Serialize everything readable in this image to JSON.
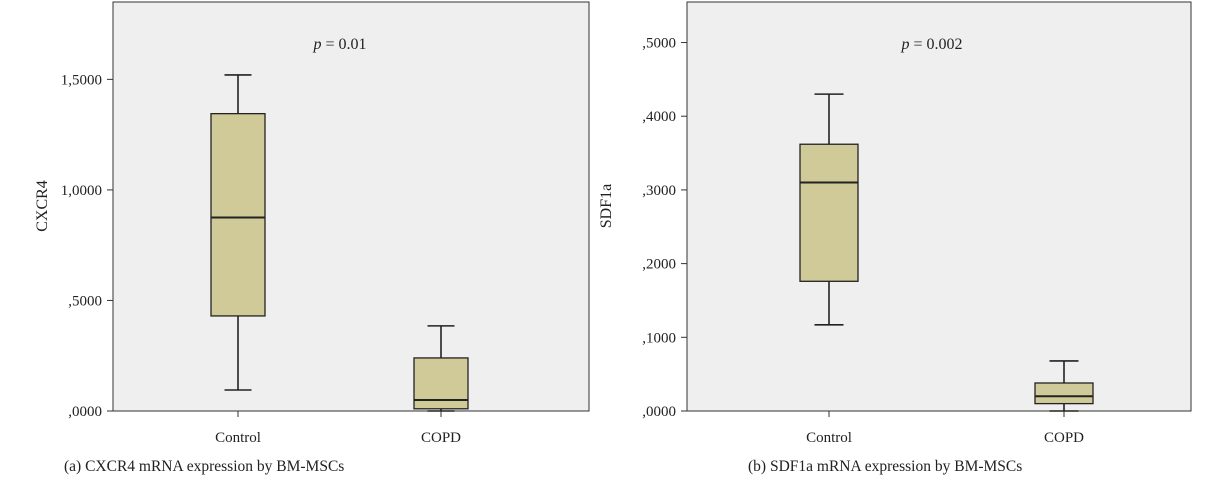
{
  "chart_data": [
    {
      "type": "box",
      "caption": "(a)  CXCR4 mRNA expression by BM-MSCs",
      "ylabel": "CXCR4",
      "ylim": [
        0,
        1.85
      ],
      "yticks": [
        0,
        0.5,
        1.0,
        1.5
      ],
      "ytick_labels": [
        ",0000",
        ",5000",
        "1,0000",
        "1,5000"
      ],
      "annotation": {
        "p_symbol": "p",
        "p_text": " = 0.01"
      },
      "categories": [
        "Control",
        "COPD"
      ],
      "boxes": [
        {
          "category": "Control",
          "min": 0.095,
          "q1": 0.43,
          "median": 0.875,
          "q3": 1.345,
          "max": 1.52
        },
        {
          "category": "COPD",
          "min": 0.0,
          "q1": 0.01,
          "median": 0.05,
          "q3": 0.24,
          "max": 0.385
        }
      ],
      "colors": {
        "box_fill": "#cfca98",
        "plot_bg": "#efefef",
        "stroke": "#222222"
      }
    },
    {
      "type": "box",
      "caption": "(b)  SDF1a mRNA expression by BM-MSCs",
      "ylabel": "SDF1a",
      "ylim": [
        0,
        0.555
      ],
      "yticks": [
        0,
        0.1,
        0.2,
        0.3,
        0.4,
        0.5
      ],
      "ytick_labels": [
        ",0000",
        ",1000",
        ",2000",
        ",3000",
        ",4000",
        ",5000"
      ],
      "annotation": {
        "p_symbol": "p",
        "p_text": " = 0.002"
      },
      "categories": [
        "Control",
        "COPD"
      ],
      "boxes": [
        {
          "category": "Control",
          "min": 0.117,
          "q1": 0.176,
          "median": 0.31,
          "q3": 0.362,
          "max": 0.43
        },
        {
          "category": "COPD",
          "min": 0.0,
          "q1": 0.01,
          "median": 0.02,
          "q3": 0.038,
          "max": 0.068
        }
      ],
      "colors": {
        "box_fill": "#cfca98",
        "plot_bg": "#efefef",
        "stroke": "#222222"
      }
    }
  ]
}
